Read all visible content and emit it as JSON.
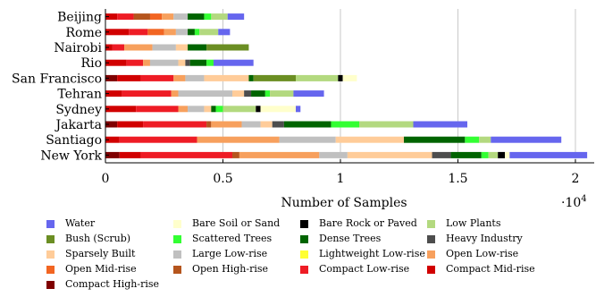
{
  "chart_data": {
    "type": "bar",
    "orientation": "horizontal",
    "stacked": true,
    "xlabel": "Number of Samples",
    "x_multiplier_label": "·10",
    "x_multiplier_exp": "4",
    "xlim": [
      0,
      20800
    ],
    "xticks": [
      0,
      5000,
      10000,
      15000,
      20000
    ],
    "xtick_labels": [
      "0",
      "0.5",
      "1",
      "1.5",
      "2"
    ],
    "grid": "x",
    "legend_position": "bottom",
    "categories": [
      "Beijing",
      "Rome",
      "Nairobi",
      "Rio",
      "San Francisco",
      "Tehran",
      "Sydney",
      "Jakarta",
      "Santiago",
      "New York"
    ],
    "series": [
      {
        "name": "Compact High-rise",
        "color": "#7f0000",
        "values": [
          0,
          0,
          0,
          0,
          500,
          0,
          0,
          500,
          0,
          600
        ]
      },
      {
        "name": "Compact Mid-rise",
        "color": "#d10000",
        "values": [
          500,
          1000,
          300,
          900,
          1000,
          700,
          1300,
          1100,
          600,
          900
        ]
      },
      {
        "name": "Compact Low-rise",
        "color": "#ee1c25",
        "values": [
          700,
          800,
          500,
          700,
          1400,
          2100,
          1800,
          2700,
          3300,
          3900
        ]
      },
      {
        "name": "Open High-rise",
        "color": "#b5551d",
        "values": [
          700,
          0,
          0,
          0,
          0,
          0,
          0,
          200,
          0,
          300
        ]
      },
      {
        "name": "Open Mid-rise",
        "color": "#f26522",
        "values": [
          500,
          700,
          0,
          0,
          0,
          0,
          0,
          0,
          0,
          0
        ]
      },
      {
        "name": "Open Low-rise",
        "color": "#f7a05d",
        "values": [
          500,
          500,
          1200,
          300,
          500,
          300,
          400,
          1300,
          3500,
          3400
        ]
      },
      {
        "name": "Lightweight Low-rise",
        "color": "#ffff33",
        "values": [
          0,
          0,
          0,
          0,
          0,
          0,
          0,
          0,
          0,
          0
        ]
      },
      {
        "name": "Large Low-rise",
        "color": "#c0c0c0",
        "values": [
          600,
          500,
          1000,
          1200,
          800,
          2300,
          700,
          800,
          2400,
          1200
        ]
      },
      {
        "name": "Sparsely Built",
        "color": "#ffcc99",
        "values": [
          0,
          0,
          500,
          300,
          1900,
          500,
          300,
          500,
          2900,
          3600
        ]
      },
      {
        "name": "Heavy Industry",
        "color": "#4d4d4d",
        "values": [
          0,
          0,
          0,
          200,
          0,
          300,
          0,
          500,
          0,
          800
        ]
      },
      {
        "name": "Dense Trees",
        "color": "#006400",
        "values": [
          700,
          300,
          800,
          700,
          200,
          600,
          200,
          2000,
          2600,
          1300
        ]
      },
      {
        "name": "Scattered Trees",
        "color": "#33ff33",
        "values": [
          300,
          200,
          0,
          300,
          0,
          200,
          300,
          1200,
          600,
          300
        ]
      },
      {
        "name": "Bush (Scrub)",
        "color": "#6b8e23",
        "values": [
          0,
          0,
          1800,
          0,
          1800,
          0,
          0,
          0,
          0,
          0
        ]
      },
      {
        "name": "Low Plants",
        "color": "#b3d97f",
        "values": [
          700,
          800,
          0,
          0,
          1800,
          1000,
          1400,
          2300,
          500,
          400
        ]
      },
      {
        "name": "Bare Rock or Paved",
        "color": "#000000",
        "values": [
          0,
          0,
          0,
          0,
          200,
          0,
          200,
          0,
          0,
          300
        ]
      },
      {
        "name": "Bare Soil or Sand",
        "color": "#ffffcc",
        "values": [
          0,
          0,
          0,
          0,
          600,
          0,
          1500,
          0,
          0,
          200
        ]
      },
      {
        "name": "Water",
        "color": "#6666ee",
        "values": [
          700,
          500,
          0,
          1700,
          0,
          1300,
          200,
          2300,
          3000,
          3300
        ]
      }
    ],
    "legend_order": [
      "Water",
      "Bare Soil or Sand",
      "Bare Rock or Paved",
      "Low Plants",
      "Bush (Scrub)",
      "Scattered Trees",
      "Dense Trees",
      "Heavy Industry",
      "Sparsely Built",
      "Large Low-rise",
      "Lightweight Low-rise",
      "Open Low-rise",
      "Open Mid-rise",
      "Open High-rise",
      "Compact Low-rise",
      "Compact Mid-rise",
      "Compact High-rise"
    ]
  }
}
